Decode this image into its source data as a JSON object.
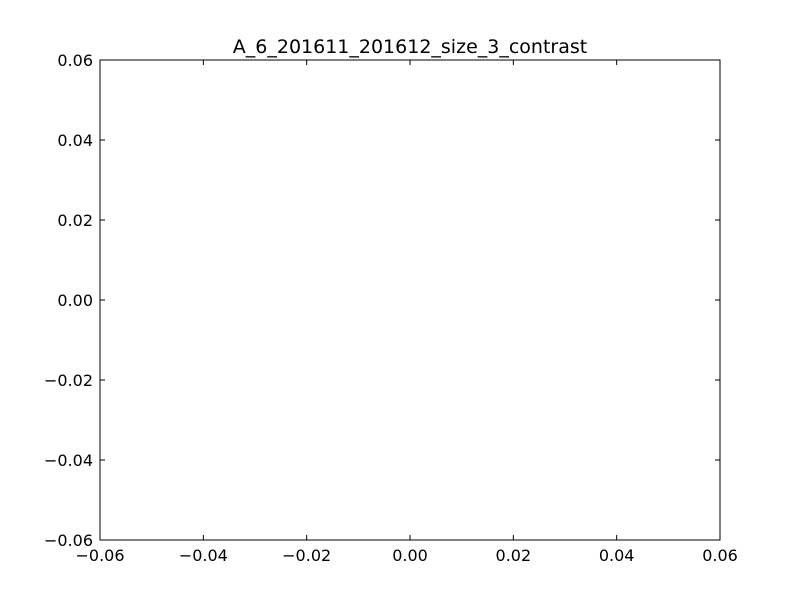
{
  "chart_data": {
    "type": "scatter",
    "title": "A_6_201611_201612_size_3_contrast",
    "xlabel": "",
    "ylabel": "",
    "xlim": [
      -0.06,
      0.06
    ],
    "ylim": [
      -0.06,
      0.06
    ],
    "x_ticks": [
      -0.06,
      -0.04,
      -0.02,
      0.0,
      0.02,
      0.04,
      0.06
    ],
    "y_ticks": [
      -0.06,
      -0.04,
      -0.02,
      0.0,
      0.02,
      0.04,
      0.06
    ],
    "x_tick_labels": [
      "−0.06",
      "−0.04",
      "−0.02",
      "0.00",
      "0.02",
      "0.04",
      "0.06"
    ],
    "y_tick_labels": [
      "−0.06",
      "−0.04",
      "−0.02",
      "0.00",
      "0.02",
      "0.04",
      "0.06"
    ],
    "grid": false,
    "series": []
  }
}
